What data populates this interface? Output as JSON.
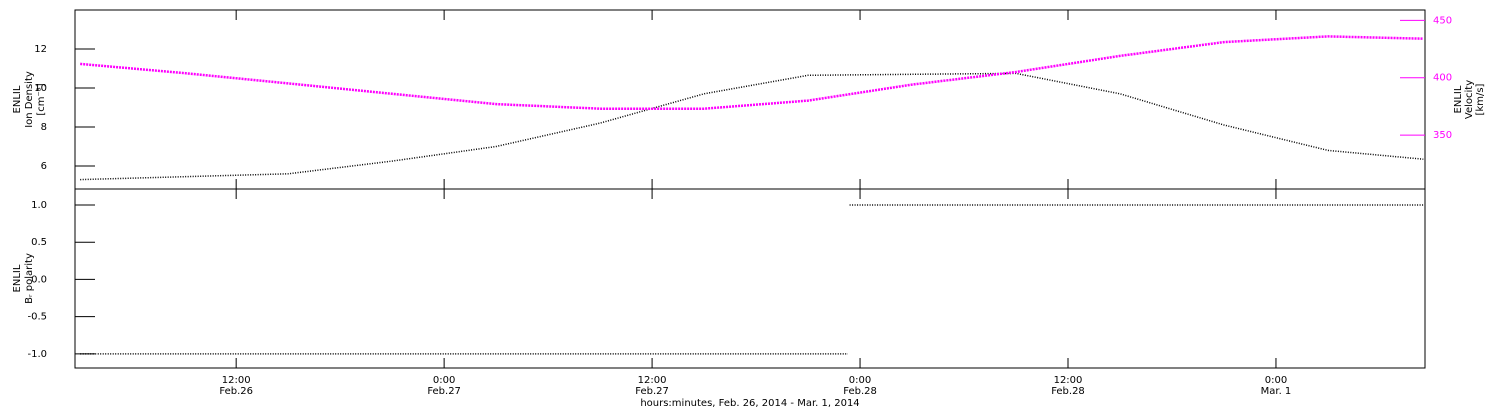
{
  "chart_data": [
    {
      "type": "line",
      "ylabel": [
        "ENLIL",
        "Ion Density",
        "[cm⁻³]"
      ],
      "y2label": [
        "ENLIL",
        "Velocity",
        "[km/s]"
      ],
      "x": [
        3,
        9,
        15,
        21,
        27,
        33,
        39,
        45,
        51,
        57,
        63,
        69,
        75,
        80.5
      ],
      "series": [
        {
          "color": "#000000",
          "values": [
            5.3,
            5.45,
            5.6,
            6.25,
            7.0,
            8.2,
            9.7,
            10.65,
            10.7,
            10.75,
            9.7,
            8.1,
            6.8,
            6.35
          ]
        },
        {
          "color": "#ff00ff",
          "axis": "y2",
          "values": [
            412,
            404,
            395,
            386,
            377,
            373,
            373,
            380,
            394,
            405,
            419,
            431,
            436,
            434
          ]
        }
      ],
      "xlim": [
        2.7,
        80.6
      ],
      "xticks": [
        12,
        24,
        36,
        48,
        60,
        72
      ],
      "ylim": [
        4.82,
        14.0
      ],
      "yticks": [
        6,
        8,
        10,
        12
      ],
      "y2lim": [
        303,
        459
      ],
      "y2ticks": [
        350,
        400,
        450
      ]
    },
    {
      "type": "line",
      "ylabel": [
        "ENLIL",
        "Bᵣ polarity"
      ],
      "xlabel": "hours:minutes, Feb. 26, 2014 - Mar.  1, 2014",
      "x": [
        3,
        47.3,
        47.3,
        47.4,
        80.5
      ],
      "series": [
        {
          "color": "#000000",
          "values": [
            -1,
            -1,
            null,
            1,
            1
          ]
        }
      ],
      "xlim": [
        2.7,
        80.6
      ],
      "xticks": [
        {
          "value": 12,
          "label": "12:00",
          "date": "Feb.26"
        },
        {
          "value": 24,
          "label": "0:00",
          "date": "Feb.27"
        },
        {
          "value": 36,
          "label": "12:00",
          "date": "Feb.27"
        },
        {
          "value": 48,
          "label": "0:00",
          "date": "Feb.28"
        },
        {
          "value": 60,
          "label": "12:00",
          "date": "Feb.28"
        },
        {
          "value": 72,
          "label": "0:00",
          "date": "Mar. 1"
        }
      ],
      "ylim": [
        -1.19,
        1.215
      ],
      "yticks": [
        {
          "value": -1,
          "label": "-1.0"
        },
        -0.5,
        {
          "value": 0,
          "label": "0.0"
        },
        0.5,
        {
          "value": 1,
          "label": "1.0"
        }
      ]
    }
  ]
}
